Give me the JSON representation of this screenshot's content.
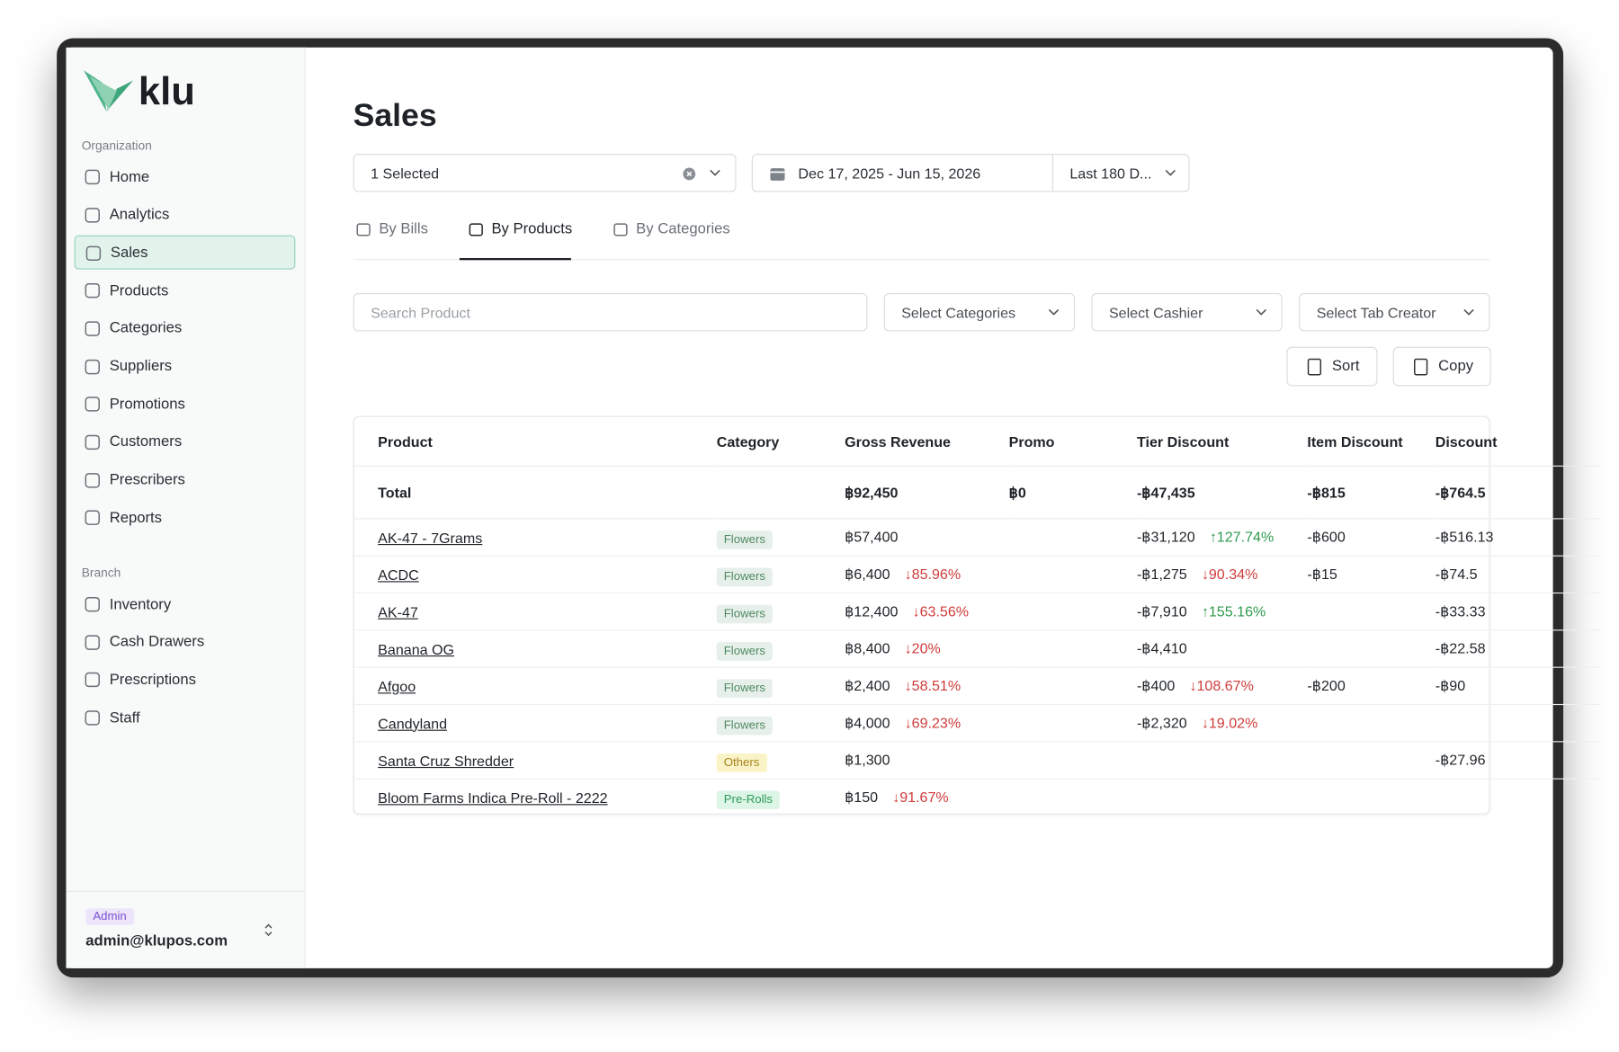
{
  "sidebar": {
    "logo": "klu",
    "sections": [
      {
        "title": "Organization",
        "items": [
          "Home",
          "Analytics",
          "Sales",
          "Products",
          "Categories",
          "Suppliers",
          "Promotions",
          "Customers",
          "Prescribers",
          "Reports"
        ]
      },
      {
        "title": "Branch",
        "items": [
          "Inventory",
          "Cash Drawers",
          "Prescriptions",
          "Staff"
        ]
      }
    ],
    "active": "Sales",
    "user": {
      "role": "Admin",
      "email": "admin@klupos.com"
    }
  },
  "header": {
    "title": "Sales",
    "location_select": "1 Selected",
    "date_range": "Dec 17, 2025 - Jun 15, 2026",
    "period": "Last 180 D..."
  },
  "tabs": {
    "items": [
      "By Bills",
      "By Products",
      "By Categories"
    ],
    "active": "By Products"
  },
  "filters": {
    "search_placeholder": "Search Product",
    "selects": [
      "Select Categories",
      "Select Cashier",
      "Select Tab Creator"
    ],
    "buttons": [
      "Sort",
      "Copy"
    ]
  },
  "table": {
    "columns": [
      "Product",
      "Category",
      "Gross Revenue",
      "Promo",
      "Tier Discount",
      "Item Discount",
      "Discount"
    ],
    "category_colors": {
      "Flowers": [
        "#e6efe9",
        "#4f8a63"
      ],
      "Others": [
        "#fbf3c8",
        "#a6861a"
      ],
      "Pre-Rolls": [
        "#dcf5e6",
        "#2f9a5a"
      ]
    },
    "total": {
      "label": "Total",
      "gross_revenue": "฿92,450",
      "promo": "฿0",
      "tier_discount": "-฿47,435",
      "item_discount": "-฿815",
      "discount": "-฿764.5"
    },
    "rows": [
      {
        "product": "AK-47 - 7Grams",
        "category": "Flowers",
        "gross_revenue": "฿57,400",
        "gross_change": null,
        "promo": null,
        "tier_discount": "-฿31,120",
        "tier_change": "↑127.74%",
        "item_discount": "-฿600",
        "discount": "-฿516.13"
      },
      {
        "product": "ACDC",
        "category": "Flowers",
        "gross_revenue": "฿6,400",
        "gross_change": "↓85.96%",
        "promo": null,
        "tier_discount": "-฿1,275",
        "tier_change": "↓90.34%",
        "item_discount": "-฿15",
        "discount": "-฿74.5"
      },
      {
        "product": "AK-47",
        "category": "Flowers",
        "gross_revenue": "฿12,400",
        "gross_change": "↓63.56%",
        "promo": null,
        "tier_discount": "-฿7,910",
        "tier_change": "↑155.16%",
        "item_discount": null,
        "discount": "-฿33.33"
      },
      {
        "product": "Banana OG",
        "category": "Flowers",
        "gross_revenue": "฿8,400",
        "gross_change": "↓20%",
        "promo": null,
        "tier_discount": "-฿4,410",
        "tier_change": null,
        "item_discount": null,
        "discount": "-฿22.58"
      },
      {
        "product": "Afgoo",
        "category": "Flowers",
        "gross_revenue": "฿2,400",
        "gross_change": "↓58.51%",
        "promo": null,
        "tier_discount": "-฿400",
        "tier_change": "↓108.67%",
        "item_discount": "-฿200",
        "discount": "-฿90"
      },
      {
        "product": "Candyland",
        "category": "Flowers",
        "gross_revenue": "฿4,000",
        "gross_change": "↓69.23%",
        "promo": null,
        "tier_discount": "-฿2,320",
        "tier_change": "↓19.02%",
        "item_discount": null,
        "discount": null
      },
      {
        "product": "Santa Cruz Shredder",
        "category": "Others",
        "gross_revenue": "฿1,300",
        "gross_change": null,
        "promo": null,
        "tier_discount": null,
        "tier_change": null,
        "item_discount": null,
        "discount": "-฿27.96"
      },
      {
        "product": "Bloom Farms Indica Pre-Roll - 2222",
        "category": "Pre-Rolls",
        "gross_revenue": "฿150",
        "gross_change": "↓91.67%",
        "promo": null,
        "tier_discount": null,
        "tier_change": null,
        "item_discount": null,
        "discount": null
      }
    ]
  }
}
